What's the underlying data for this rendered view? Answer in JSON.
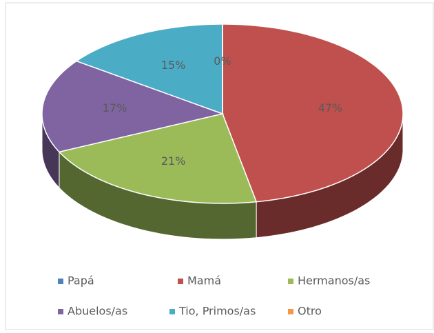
{
  "chart_data": {
    "type": "pie3d",
    "categories": [
      "Papá",
      "Mamá",
      "Hermanos/as",
      "Abuelos/as",
      "Tio, Primos/as",
      "Otro"
    ],
    "values": [
      0,
      47,
      21,
      17,
      15,
      0
    ],
    "value_labels": [
      "0%",
      "47%",
      "21%",
      "17%",
      "15%",
      null
    ],
    "colors": [
      "#4f81bd",
      "#c0504d",
      "#9bbb59",
      "#8064a2",
      "#4bacc6",
      "#f79646"
    ],
    "legend": "bottom"
  }
}
